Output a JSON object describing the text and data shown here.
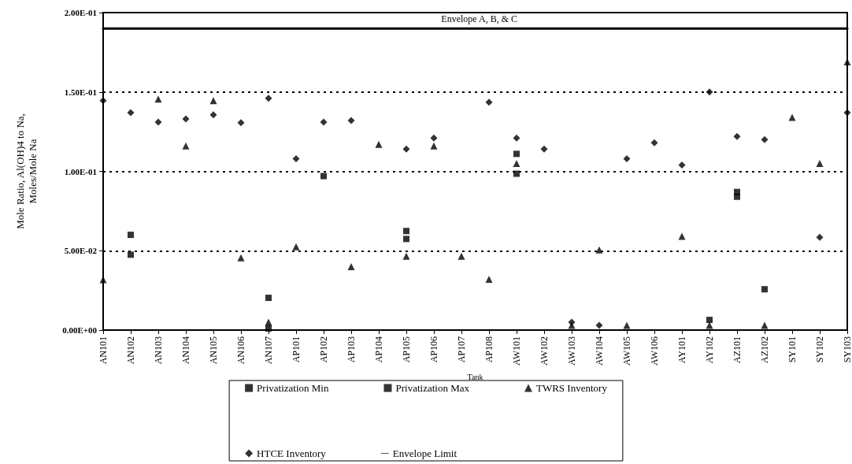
{
  "chart_data": {
    "type": "scatter",
    "xlabel": "Tank",
    "ylabel": "Mole Ratio, Al(OH)4 to Na,\nMoles/Mole Na",
    "categories": [
      "AN101",
      "AN102",
      "AN103",
      "AN104",
      "AN105",
      "AN106",
      "AN107",
      "AP101",
      "AP102",
      "AP103",
      "AP104",
      "AP105",
      "AP106",
      "AP107",
      "AP108",
      "AW101",
      "AW102",
      "AW103",
      "AW104",
      "AW105",
      "AW106",
      "AY101",
      "AY102",
      "AZ101",
      "AZ102",
      "SY101",
      "SY102",
      "SY103"
    ],
    "ylim": [
      0,
      0.2
    ],
    "yticks": [
      {
        "value": 0,
        "label": "0.00E+00"
      },
      {
        "value": 0.05,
        "label": "5.00E-02"
      },
      {
        "value": 0.1,
        "label": "1.00E-01"
      },
      {
        "value": 0.15,
        "label": "1.50E-01"
      },
      {
        "value": 0.2,
        "label": "2.00E-01"
      }
    ],
    "grid": "y",
    "legend": "bottom",
    "series": [
      {
        "name": "Privatization Min",
        "color": "#000000",
        "marker": "square",
        "values": [
          null,
          0.0475,
          null,
          null,
          null,
          null,
          0.001,
          null,
          null,
          null,
          null,
          0.0574,
          null,
          null,
          null,
          0.0985,
          null,
          null,
          null,
          null,
          null,
          null,
          0.0064,
          0.084,
          0.0257,
          null,
          null,
          null
        ]
      },
      {
        "name": "Privatization Max",
        "color": "#000000",
        "marker": "square",
        "values": [
          null,
          0.06,
          null,
          null,
          null,
          null,
          0.0203,
          null,
          0.097,
          null,
          null,
          0.0624,
          null,
          null,
          null,
          0.111,
          null,
          null,
          null,
          null,
          null,
          null,
          null,
          0.087,
          null,
          null,
          null,
          null
        ]
      },
      {
        "name": "TWRS Inventory",
        "color": "#000000",
        "marker": "triangle",
        "values": [
          0.0317,
          null,
          0.1455,
          0.116,
          0.1445,
          0.0455,
          0.005,
          0.0525,
          null,
          0.04,
          0.117,
          0.0465,
          0.116,
          0.0465,
          0.032,
          0.105,
          null,
          0.003,
          0.0505,
          0.003,
          null,
          0.059,
          0.003,
          null,
          0.003,
          0.134,
          0.105,
          0.169
        ]
      },
      {
        "name": "HTCE Inventory",
        "color": "#000000",
        "marker": "diamond",
        "values": [
          0.1445,
          0.137,
          0.131,
          0.133,
          0.1356,
          0.1307,
          0.146,
          0.108,
          0.131,
          0.132,
          null,
          0.114,
          0.121,
          null,
          0.1436,
          0.121,
          0.114,
          0.005,
          0.003,
          0.108,
          0.118,
          0.104,
          0.15,
          0.122,
          0.12,
          null,
          0.0584,
          0.137
        ]
      },
      {
        "name": "Envelope Limit",
        "type": "line",
        "color": "#000000",
        "marker": "none",
        "values": [
          0.19,
          0.19,
          0.19,
          0.19,
          0.19,
          0.19,
          0.19,
          0.19,
          0.19,
          0.19,
          0.19,
          0.19,
          0.19,
          0.19,
          0.19,
          0.19,
          0.19,
          0.19,
          0.19,
          0.19,
          0.19,
          0.19,
          0.19,
          0.19,
          0.19,
          0.19,
          0.19,
          0.19
        ]
      }
    ],
    "annotations": [
      "Envelope A, B, & C"
    ]
  }
}
